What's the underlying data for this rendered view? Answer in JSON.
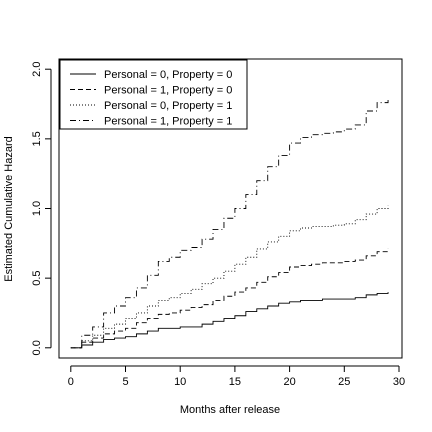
{
  "chart_data": {
    "type": "line",
    "xlabel": "Months after release",
    "ylabel": "Estimated Cumulative Hazard",
    "xlim": [
      0,
      30
    ],
    "ylim": [
      0,
      2
    ],
    "xticks": [
      0,
      5,
      10,
      15,
      20,
      25,
      30
    ],
    "yticks": [
      0.0,
      0.5,
      1.0,
      1.5,
      2.0
    ],
    "ytick_labels": [
      "0.0",
      "0.5",
      "1.0",
      "1.5",
      "2.0"
    ],
    "grid": false,
    "legend_position": "top-left",
    "series": [
      {
        "name": "Personal = 0, Property = 0",
        "linestyle": "solid",
        "x": [
          0,
          1,
          2,
          3,
          4,
          5,
          6,
          7,
          8,
          9,
          10,
          11,
          12,
          13,
          14,
          15,
          16,
          17,
          18,
          19,
          20,
          21,
          22,
          23,
          24,
          25,
          26,
          27,
          28,
          29
        ],
        "y": [
          0.0,
          0.02,
          0.04,
          0.06,
          0.07,
          0.08,
          0.1,
          0.12,
          0.14,
          0.14,
          0.15,
          0.15,
          0.17,
          0.19,
          0.21,
          0.23,
          0.26,
          0.28,
          0.3,
          0.32,
          0.33,
          0.34,
          0.34,
          0.35,
          0.35,
          0.35,
          0.36,
          0.38,
          0.39,
          0.4
        ]
      },
      {
        "name": "Personal = 1, Property = 0",
        "linestyle": "dashed",
        "x": [
          0,
          1,
          2,
          3,
          4,
          5,
          6,
          7,
          8,
          9,
          10,
          11,
          12,
          13,
          14,
          15,
          16,
          17,
          18,
          19,
          20,
          21,
          22,
          23,
          24,
          25,
          26,
          27,
          28,
          29
        ],
        "y": [
          0.0,
          0.04,
          0.07,
          0.1,
          0.12,
          0.14,
          0.18,
          0.21,
          0.24,
          0.25,
          0.27,
          0.29,
          0.31,
          0.34,
          0.37,
          0.4,
          0.43,
          0.47,
          0.51,
          0.54,
          0.58,
          0.59,
          0.6,
          0.61,
          0.61,
          0.62,
          0.63,
          0.66,
          0.69,
          0.71
        ]
      },
      {
        "name": "Personal = 0, Property = 1",
        "linestyle": "dotted",
        "x": [
          0,
          1,
          2,
          3,
          4,
          5,
          6,
          7,
          8,
          9,
          10,
          11,
          12,
          13,
          14,
          15,
          16,
          17,
          18,
          19,
          20,
          21,
          22,
          23,
          24,
          25,
          26,
          27,
          28,
          29
        ],
        "y": [
          0.0,
          0.05,
          0.09,
          0.14,
          0.17,
          0.21,
          0.25,
          0.3,
          0.34,
          0.36,
          0.39,
          0.42,
          0.46,
          0.5,
          0.55,
          0.6,
          0.65,
          0.71,
          0.76,
          0.8,
          0.84,
          0.86,
          0.87,
          0.87,
          0.88,
          0.89,
          0.92,
          0.96,
          1.0,
          1.02
        ]
      },
      {
        "name": "Personal = 1, Property = 1",
        "linestyle": "dashdot",
        "x": [
          0,
          1,
          2,
          3,
          4,
          5,
          6,
          7,
          8,
          9,
          10,
          11,
          12,
          13,
          14,
          15,
          16,
          17,
          18,
          19,
          20,
          21,
          22,
          23,
          24,
          25,
          26,
          27,
          28,
          29
        ],
        "y": [
          0.0,
          0.09,
          0.15,
          0.25,
          0.3,
          0.36,
          0.43,
          0.52,
          0.62,
          0.65,
          0.7,
          0.72,
          0.78,
          0.85,
          0.93,
          1.0,
          1.1,
          1.2,
          1.3,
          1.38,
          1.47,
          1.51,
          1.53,
          1.54,
          1.55,
          1.57,
          1.6,
          1.7,
          1.76,
          1.79
        ]
      }
    ]
  }
}
